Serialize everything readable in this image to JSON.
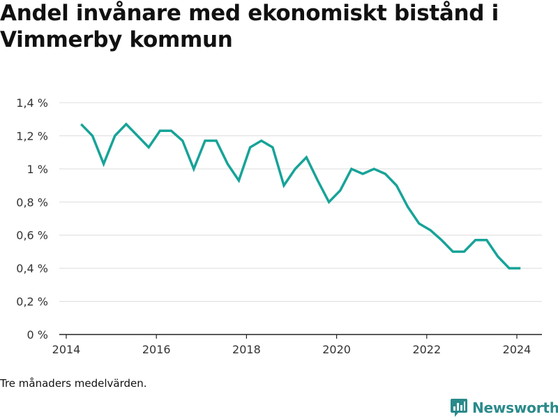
{
  "title": "Andel invånare med ekonomiskt bistånd i Vimmerby kommun",
  "footnote": "Tre månaders medelvärden.",
  "brand": {
    "name": "Newsworthy",
    "color": "#2a8a8a",
    "icon": "bar-chart-speech-bubble-icon"
  },
  "chart_data": {
    "type": "line",
    "title": "Andel invånare med ekonomiskt bistånd i Vimmerby kommun",
    "xlabel": "",
    "ylabel": "",
    "xlim": [
      2014,
      2024.5
    ],
    "ylim": [
      0,
      1.4
    ],
    "y_ticks": [
      {
        "value": 0,
        "label": "0 %"
      },
      {
        "value": 0.2,
        "label": "0,2 %"
      },
      {
        "value": 0.4,
        "label": "0,4 %"
      },
      {
        "value": 0.6,
        "label": "0,6 %"
      },
      {
        "value": 0.8,
        "label": "0,8 %"
      },
      {
        "value": 1.0,
        "label": "1 %"
      },
      {
        "value": 1.2,
        "label": "1,2 %"
      },
      {
        "value": 1.4,
        "label": "1,4 %"
      }
    ],
    "x_ticks": [
      {
        "value": 2014,
        "label": "2014"
      },
      {
        "value": 2016,
        "label": "2016"
      },
      {
        "value": 2018,
        "label": "2018"
      },
      {
        "value": 2020,
        "label": "2020"
      },
      {
        "value": 2022,
        "label": "2022"
      },
      {
        "value": 2024,
        "label": "2024"
      }
    ],
    "grid": true,
    "series": [
      {
        "color": "#17a398",
        "x": [
          2014.33,
          2014.58,
          2014.83,
          2015.08,
          2015.33,
          2015.58,
          2015.83,
          2016.08,
          2016.33,
          2016.58,
          2016.83,
          2017.08,
          2017.33,
          2017.58,
          2017.83,
          2018.08,
          2018.33,
          2018.58,
          2018.83,
          2019.08,
          2019.33,
          2019.58,
          2019.83,
          2020.08,
          2020.33,
          2020.58,
          2020.83,
          2021.08,
          2021.33,
          2021.58,
          2021.83,
          2022.08,
          2022.33,
          2022.58,
          2022.83,
          2023.08,
          2023.33,
          2023.58,
          2023.83,
          2024.08
        ],
        "y": [
          1.27,
          1.2,
          1.03,
          1.2,
          1.27,
          1.2,
          1.13,
          1.23,
          1.23,
          1.17,
          1.0,
          1.17,
          1.17,
          1.03,
          0.93,
          1.13,
          1.17,
          1.13,
          0.9,
          1.0,
          1.07,
          0.93,
          0.8,
          0.87,
          1.0,
          0.97,
          1.0,
          0.97,
          0.9,
          0.77,
          0.67,
          0.63,
          0.57,
          0.5,
          0.5,
          0.57,
          0.57,
          0.47,
          0.4,
          0.4
        ]
      }
    ]
  }
}
